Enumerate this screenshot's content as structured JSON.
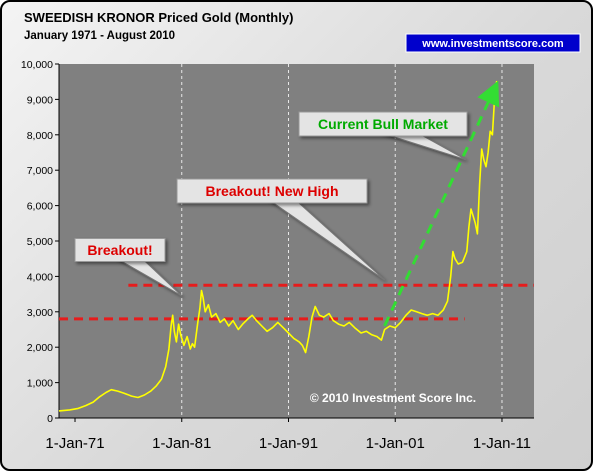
{
  "chart_data": {
    "type": "line",
    "title": "SWEEDISH KRONOR Priced Gold (Monthly)",
    "subtitle": "January 1971 - August 2010",
    "website": "www.investmentscore.com",
    "copyright": "© 2010 Investment Score Inc.",
    "xlabel": "",
    "ylabel": "",
    "xlim": [
      1969.5,
      2014
    ],
    "ylim": [
      0,
      10000
    ],
    "yticks": [
      0,
      1000,
      2000,
      3000,
      4000,
      5000,
      6000,
      7000,
      8000,
      9000,
      10000
    ],
    "ytick_labels": [
      "0",
      "1,000",
      "2,000",
      "3,000",
      "4,000",
      "5,000",
      "6,000",
      "7,000",
      "8,000",
      "9,000",
      "10,000"
    ],
    "xticks": [
      1971,
      1981,
      1991,
      2001,
      2011
    ],
    "xtick_labels": [
      "1-Jan-71",
      "1-Jan-81",
      "1-Jan-91",
      "1-Jan-01",
      "1-Jan-11"
    ],
    "vertical_gridlines": [
      1981,
      1991,
      2001,
      2011
    ],
    "grid": true,
    "line_color": "#ffff00",
    "plot_background": "#808080",
    "series": [
      {
        "points": [
          [
            1969.5,
            200
          ],
          [
            1970.5,
            230
          ],
          [
            1971.3,
            270
          ],
          [
            1972.0,
            350
          ],
          [
            1972.7,
            450
          ],
          [
            1973.3,
            600
          ],
          [
            1973.9,
            720
          ],
          [
            1974.4,
            800
          ],
          [
            1975.0,
            760
          ],
          [
            1975.6,
            700
          ],
          [
            1976.3,
            620
          ],
          [
            1976.9,
            580
          ],
          [
            1977.5,
            650
          ],
          [
            1978.1,
            760
          ],
          [
            1978.6,
            900
          ],
          [
            1979.1,
            1100
          ],
          [
            1979.5,
            1450
          ],
          [
            1979.8,
            1950
          ],
          [
            1980.0,
            2600
          ],
          [
            1980.15,
            2900
          ],
          [
            1980.3,
            2450
          ],
          [
            1980.5,
            2150
          ],
          [
            1980.7,
            2650
          ],
          [
            1980.9,
            2350
          ],
          [
            1981.2,
            2050
          ],
          [
            1981.5,
            2300
          ],
          [
            1981.8,
            1950
          ],
          [
            1982.0,
            2100
          ],
          [
            1982.2,
            2000
          ],
          [
            1982.5,
            2700
          ],
          [
            1982.7,
            3100
          ],
          [
            1982.85,
            3600
          ],
          [
            1983.0,
            3400
          ],
          [
            1983.2,
            3000
          ],
          [
            1983.5,
            3200
          ],
          [
            1983.8,
            2850
          ],
          [
            1984.2,
            2950
          ],
          [
            1984.6,
            2700
          ],
          [
            1985.0,
            2800
          ],
          [
            1985.4,
            2600
          ],
          [
            1985.8,
            2750
          ],
          [
            1986.3,
            2500
          ],
          [
            1986.7,
            2650
          ],
          [
            1987.2,
            2800
          ],
          [
            1987.6,
            2900
          ],
          [
            1988.0,
            2750
          ],
          [
            1988.5,
            2600
          ],
          [
            1989.0,
            2450
          ],
          [
            1989.5,
            2550
          ],
          [
            1990.0,
            2700
          ],
          [
            1990.5,
            2550
          ],
          [
            1991.0,
            2400
          ],
          [
            1991.5,
            2250
          ],
          [
            1992.0,
            2150
          ],
          [
            1992.3,
            2050
          ],
          [
            1992.6,
            1850
          ],
          [
            1992.9,
            2300
          ],
          [
            1993.2,
            2850
          ],
          [
            1993.5,
            3150
          ],
          [
            1993.9,
            2900
          ],
          [
            1994.3,
            2850
          ],
          [
            1994.8,
            2950
          ],
          [
            1995.2,
            2750
          ],
          [
            1995.7,
            2650
          ],
          [
            1996.2,
            2600
          ],
          [
            1996.7,
            2700
          ],
          [
            1997.2,
            2550
          ],
          [
            1997.8,
            2400
          ],
          [
            1998.3,
            2450
          ],
          [
            1998.8,
            2350
          ],
          [
            1999.3,
            2300
          ],
          [
            1999.7,
            2200
          ],
          [
            2000.0,
            2500
          ],
          [
            2000.5,
            2600
          ],
          [
            2001.0,
            2550
          ],
          [
            2001.5,
            2700
          ],
          [
            2002.0,
            2900
          ],
          [
            2002.5,
            3050
          ],
          [
            2003.0,
            3000
          ],
          [
            2003.5,
            2950
          ],
          [
            2004.0,
            2900
          ],
          [
            2004.5,
            2950
          ],
          [
            2005.0,
            2900
          ],
          [
            2005.5,
            3050
          ],
          [
            2005.9,
            3300
          ],
          [
            2006.2,
            4000
          ],
          [
            2006.4,
            4700
          ],
          [
            2006.6,
            4500
          ],
          [
            2006.9,
            4350
          ],
          [
            2007.3,
            4400
          ],
          [
            2007.7,
            4700
          ],
          [
            2007.9,
            5400
          ],
          [
            2008.1,
            5900
          ],
          [
            2008.3,
            5700
          ],
          [
            2008.5,
            5500
          ],
          [
            2008.7,
            5200
          ],
          [
            2008.9,
            6600
          ],
          [
            2009.1,
            7600
          ],
          [
            2009.3,
            7300
          ],
          [
            2009.5,
            7100
          ],
          [
            2009.7,
            7500
          ],
          [
            2009.9,
            8100
          ],
          [
            2010.1,
            8000
          ],
          [
            2010.3,
            9000
          ],
          [
            2010.5,
            9500
          ],
          [
            2010.6,
            9000
          ]
        ]
      }
    ],
    "support_lines": [
      {
        "y": 3750,
        "x_start": 1976,
        "x_end": 2014,
        "color": "#e61c1c"
      },
      {
        "y": 2800,
        "x_start": 1969.5,
        "x_end": 2007.5,
        "color": "#e61c1c"
      }
    ],
    "trend_arrow": {
      "from": [
        2000.0,
        2600
      ],
      "to": [
        2010.3,
        9300
      ],
      "color": "#33dd33"
    },
    "callouts": [
      {
        "text": "Breakout!",
        "color": "#dd0000",
        "anchor": [
          1981.0,
          3450
        ]
      },
      {
        "text": "Breakout! New High",
        "color": "#dd0000",
        "anchor": [
          2000.0,
          3900
        ]
      },
      {
        "text": "Current Bull Market",
        "color": "#00aa00",
        "anchor": [
          2007.6,
          7300
        ]
      }
    ]
  }
}
